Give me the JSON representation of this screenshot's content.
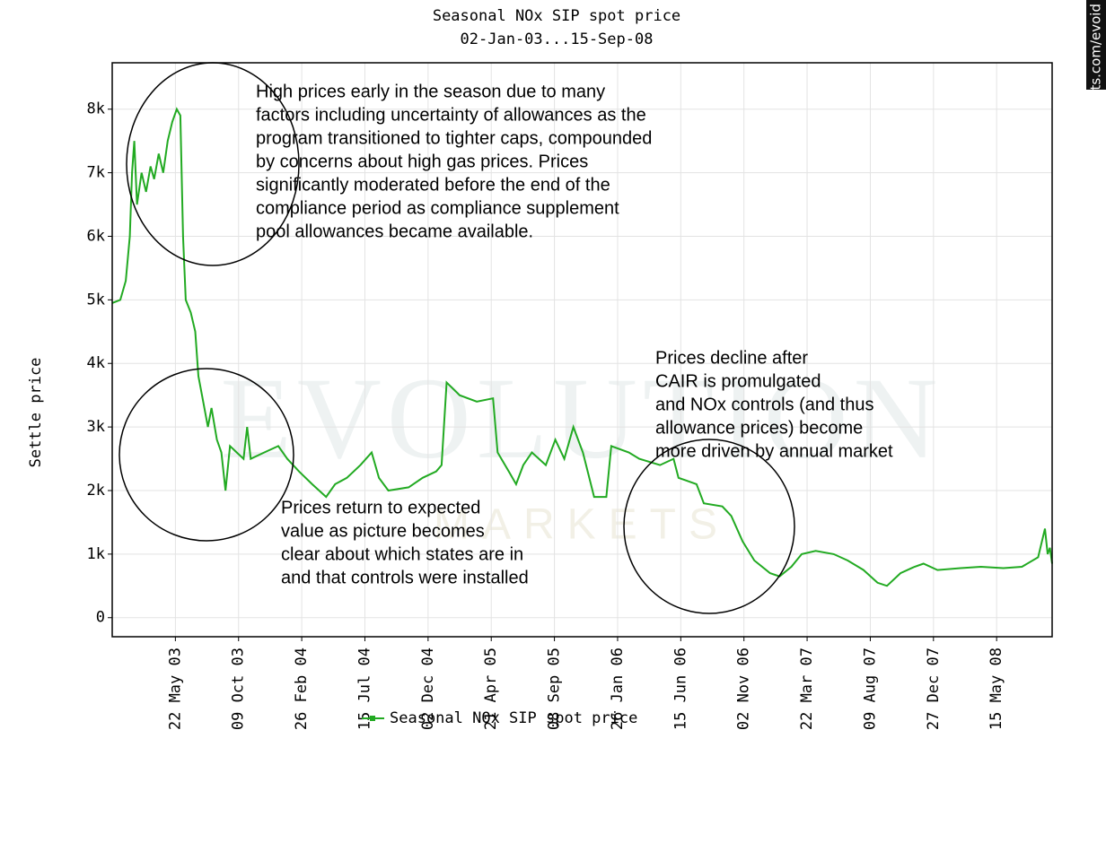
{
  "chart_data": {
    "type": "line",
    "title": "Seasonal NOx SIP spot price",
    "subtitle": "02-Jan-03...15-Sep-08",
    "y_label": "Settle price",
    "watermark": [
      "EVOLUTION",
      "MARKETS"
    ],
    "side_label": "evomarkets.com/evoid",
    "legend": "bottom",
    "grid": true,
    "xlim": [
      "2003-01-02",
      "2008-09-15"
    ],
    "ylim": [
      -300,
      8730
    ],
    "yticks": [
      0,
      {
        "value": 1000,
        "label": "1k"
      },
      {
        "value": 2000,
        "label": "2k"
      },
      {
        "value": 3000,
        "label": "3k"
      },
      {
        "value": 4000,
        "label": "4k"
      },
      {
        "value": 5000,
        "label": "5k"
      },
      {
        "value": 6000,
        "label": "6k"
      },
      {
        "value": 7000,
        "label": "7k"
      },
      {
        "value": 8000,
        "label": "8k"
      }
    ],
    "xticks": [
      {
        "value": "2003-05-22",
        "label": "22 May 03"
      },
      {
        "value": "2003-10-09",
        "label": "09 Oct 03"
      },
      {
        "value": "2004-02-26",
        "label": "26 Feb 04"
      },
      {
        "value": "2004-07-15",
        "label": "15 Jul 04"
      },
      {
        "value": "2004-12-02",
        "label": "02 Dec 04"
      },
      {
        "value": "2005-04-21",
        "label": "21 Apr 05"
      },
      {
        "value": "2005-09-08",
        "label": "08 Sep 05"
      },
      {
        "value": "2006-01-26",
        "label": "26 Jan 06"
      },
      {
        "value": "2006-06-15",
        "label": "15 Jun 06"
      },
      {
        "value": "2006-11-02",
        "label": "02 Nov 06"
      },
      {
        "value": "2007-03-22",
        "label": "22 Mar 07"
      },
      {
        "value": "2007-08-09",
        "label": "09 Aug 07"
      },
      {
        "value": "2007-12-27",
        "label": "27 Dec 07"
      },
      {
        "value": "2008-05-15",
        "label": "15 May 08"
      }
    ],
    "x": [
      "2003-01-02",
      "2003-01-20",
      "2003-02-01",
      "2003-02-10",
      "2003-02-15",
      "2003-02-20",
      "2003-02-26",
      "2003-03-08",
      "2003-03-18",
      "2003-03-28",
      "2003-04-05",
      "2003-04-15",
      "2003-04-25",
      "2003-05-05",
      "2003-05-15",
      "2003-05-25",
      "2003-06-02",
      "2003-06-08",
      "2003-06-14",
      "2003-06-25",
      "2003-07-05",
      "2003-07-12",
      "2003-07-20",
      "2003-08-02",
      "2003-08-10",
      "2003-08-22",
      "2003-09-01",
      "2003-09-10",
      "2003-09-20",
      "2003-10-05",
      "2003-10-20",
      "2003-10-28",
      "2003-11-05",
      "2003-12-05",
      "2004-01-05",
      "2004-01-25",
      "2004-02-20",
      "2004-03-20",
      "2004-04-20",
      "2004-05-10",
      "2004-06-05",
      "2004-07-05",
      "2004-07-30",
      "2004-08-15",
      "2004-09-05",
      "2004-10-20",
      "2004-11-20",
      "2004-12-20",
      "2005-01-01",
      "2005-01-12",
      "2005-02-10",
      "2005-03-20",
      "2005-04-25",
      "2005-05-05",
      "2005-05-30",
      "2005-06-15",
      "2005-07-01",
      "2005-07-20",
      "2005-08-20",
      "2005-09-10",
      "2005-09-30",
      "2005-10-20",
      "2005-11-10",
      "2005-12-05",
      "2006-01-01",
      "2006-01-12",
      "2006-02-20",
      "2006-03-15",
      "2006-04-30",
      "2006-05-30",
      "2006-06-10",
      "2006-07-20",
      "2006-08-05",
      "2006-09-15",
      "2006-10-05",
      "2006-10-30",
      "2006-11-25",
      "2006-12-30",
      "2007-01-20",
      "2007-02-15",
      "2007-03-10",
      "2007-04-10",
      "2007-05-20",
      "2007-06-20",
      "2007-07-25",
      "2007-08-25",
      "2007-09-15",
      "2007-10-15",
      "2007-11-15",
      "2007-12-05",
      "2008-01-05",
      "2008-02-25",
      "2008-04-10",
      "2008-05-30",
      "2008-07-10",
      "2008-08-15",
      "2008-08-30",
      "2008-09-05",
      "2008-09-10",
      "2008-09-15"
    ],
    "series": [
      {
        "name": "Seasonal NOx SIP spot price",
        "color": "#22aa22",
        "values": [
          4950,
          5000,
          5300,
          6000,
          7000,
          7500,
          6500,
          7000,
          6700,
          7100,
          6900,
          7300,
          7000,
          7500,
          7800,
          8000,
          7900,
          6000,
          5000,
          4800,
          4500,
          3800,
          3500,
          3000,
          3300,
          2800,
          2600,
          2000,
          2700,
          2600,
          2500,
          3000,
          2500,
          2600,
          2700,
          2500,
          2300,
          2100,
          1900,
          2100,
          2200,
          2400,
          2600,
          2200,
          2000,
          2050,
          2200,
          2300,
          2400,
          3700,
          3500,
          3400,
          3450,
          2600,
          2300,
          2100,
          2400,
          2600,
          2400,
          2800,
          2500,
          3000,
          2600,
          1900,
          1900,
          2700,
          2600,
          2500,
          2400,
          2500,
          2200,
          2100,
          1800,
          1750,
          1600,
          1200,
          900,
          700,
          650,
          800,
          1000,
          1050,
          1000,
          900,
          750,
          550,
          500,
          700,
          800,
          850,
          750,
          780,
          800,
          780,
          800,
          950,
          1400,
          1000,
          1100,
          850
        ]
      }
    ],
    "annotations": [
      {
        "lines": [
          "High prices early in the season due to many",
          "factors including uncertainty of allowances as the",
          "program transitioned to tighter caps, compounded",
          "by concerns about high gas prices.  Prices",
          "significantly moderated before the end of the",
          "compliance period as compliance supplement",
          "pool allowances became available."
        ]
      },
      {
        "lines": [
          "Prices decline after",
          "CAIR is promulgated",
          "and NOx controls (and thus",
          "allowance prices) become",
          "more driven by annual market"
        ]
      },
      {
        "lines": [
          "Prices return to expected",
          "value as picture becomes",
          "clear about which states are in",
          "and that controls were installed"
        ]
      }
    ]
  }
}
